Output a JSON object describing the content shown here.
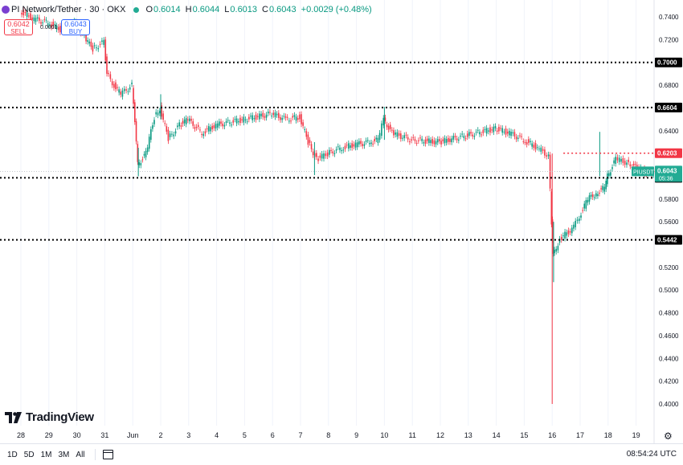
{
  "header": {
    "symbol_text": "PI Network/Tether · 30 · OKX",
    "open_label": "O",
    "open": "0.6014",
    "high_label": "H",
    "high": "0.6044",
    "low_label": "L",
    "low": "0.6013",
    "close_label": "C",
    "close": "0.6043",
    "change": "+0.0029 (+0.48%)"
  },
  "trade": {
    "sell_price": "0.6042",
    "sell_label": "SELL",
    "buy_price": "0.6043",
    "buy_label": "BUY",
    "spread": "0.0001"
  },
  "brand": "TradingView",
  "bottom_bar": {
    "timeframes": [
      "1D",
      "5D",
      "1M",
      "3M",
      "All"
    ],
    "clock": "08:54:24 UTC"
  },
  "colors": {
    "up": "#089981",
    "down": "#f23645",
    "hline": "#000000",
    "resistance_dotted": "#f23645",
    "price_badge": "#22ab94"
  },
  "chart_data": {
    "type": "candlestick",
    "symbol": "PIUSDT",
    "interval": "30",
    "ylim": [
      0.4,
      0.74
    ],
    "y_ticks": [
      0.74,
      0.72,
      0.7,
      0.68,
      0.6604,
      0.64,
      0.6203,
      0.6043,
      0.5987,
      0.58,
      0.56,
      0.5442,
      0.52,
      0.5,
      0.48,
      0.46,
      0.44,
      0.42,
      0.4
    ],
    "y_tick_labels": [
      "0.7400",
      "0.7200",
      "0.7000",
      "0.6800",
      "0.6604",
      "0.6400",
      "0.6203",
      "0.6043",
      "0.5987",
      "0.5800",
      "0.5600",
      "0.5442",
      "0.5200",
      "0.5000",
      "0.4800",
      "0.4600",
      "0.4400",
      "0.4200",
      "0.4000"
    ],
    "x_ticks": [
      "28",
      "29",
      "30",
      "31",
      "Jun",
      "2",
      "3",
      "4",
      "5",
      "6",
      "7",
      "8",
      "9",
      "10",
      "11",
      "12",
      "13",
      "14",
      "15",
      "16",
      "17",
      "18",
      "19"
    ],
    "horizontal_lines": [
      {
        "value": 0.7,
        "label": "0.7000",
        "style": "dotted-black"
      },
      {
        "value": 0.6604,
        "label": "0.6604",
        "style": "dotted-black"
      },
      {
        "value": 0.5987,
        "label": "0.5987",
        "style": "dotted-black"
      },
      {
        "value": 0.5442,
        "label": "0.5442",
        "style": "dotted-black"
      },
      {
        "value": 0.6203,
        "label": "0.6203",
        "style": "dotted-red",
        "from_x": "13.4"
      }
    ],
    "last_price": {
      "label": "PIUSDT",
      "value": "0.6043",
      "countdown": "05:36"
    },
    "price_path": [
      {
        "x": 27.0,
        "y": 0.745
      },
      {
        "x": 27.5,
        "y": 0.738
      },
      {
        "x": 28.0,
        "y": 0.735
      },
      {
        "x": 28.5,
        "y": 0.728
      },
      {
        "x": 29.0,
        "y": 0.735
      },
      {
        "x": 29.3,
        "y": 0.722
      },
      {
        "x": 29.6,
        "y": 0.712
      },
      {
        "x": 30.0,
        "y": 0.718
      },
      {
        "x": 30.1,
        "y": 0.69
      },
      {
        "x": 30.3,
        "y": 0.682
      },
      {
        "x": 30.6,
        "y": 0.672
      },
      {
        "x": 31.0,
        "y": 0.68
      },
      {
        "x": 31.1,
        "y": 0.65
      },
      {
        "x": 31.2,
        "y": 0.61
      },
      {
        "x": 31.5,
        "y": 0.62
      },
      {
        "x": 31.8,
        "y": 0.652
      },
      {
        "x": 32.0,
        "y": 0.66
      },
      {
        "x": 32.3,
        "y": 0.633
      },
      {
        "x": 32.7,
        "y": 0.645
      },
      {
        "x": 33.0,
        "y": 0.65
      },
      {
        "x": 33.5,
        "y": 0.638
      },
      {
        "x": 34.0,
        "y": 0.645
      },
      {
        "x": 35.0,
        "y": 0.65
      },
      {
        "x": 36.0,
        "y": 0.655
      },
      {
        "x": 36.5,
        "y": 0.65
      },
      {
        "x": 37.0,
        "y": 0.652
      },
      {
        "x": 37.3,
        "y": 0.63
      },
      {
        "x": 37.6,
        "y": 0.615
      },
      {
        "x": 38.0,
        "y": 0.62
      },
      {
        "x": 38.5,
        "y": 0.625
      },
      {
        "x": 39.0,
        "y": 0.628
      },
      {
        "x": 39.5,
        "y": 0.63
      },
      {
        "x": 39.8,
        "y": 0.632
      },
      {
        "x": 40.0,
        "y": 0.65
      },
      {
        "x": 40.3,
        "y": 0.638
      },
      {
        "x": 41.0,
        "y": 0.632
      },
      {
        "x": 42.0,
        "y": 0.63
      },
      {
        "x": 43.0,
        "y": 0.636
      },
      {
        "x": 44.0,
        "y": 0.642
      },
      {
        "x": 44.5,
        "y": 0.638
      },
      {
        "x": 45.0,
        "y": 0.632
      },
      {
        "x": 45.5,
        "y": 0.625
      },
      {
        "x": 45.9,
        "y": 0.618
      },
      {
        "x": 46.0,
        "y": 0.56
      },
      {
        "x": 46.05,
        "y": 0.53
      },
      {
        "x": 46.3,
        "y": 0.545
      },
      {
        "x": 46.8,
        "y": 0.555
      },
      {
        "x": 47.0,
        "y": 0.565
      },
      {
        "x": 47.3,
        "y": 0.58
      },
      {
        "x": 47.6,
        "y": 0.585
      },
      {
        "x": 47.9,
        "y": 0.59
      },
      {
        "x": 48.0,
        "y": 0.6
      },
      {
        "x": 48.3,
        "y": 0.615
      },
      {
        "x": 48.7,
        "y": 0.612
      },
      {
        "x": 49.0,
        "y": 0.608
      },
      {
        "x": 49.4,
        "y": 0.603
      },
      {
        "x": 49.9,
        "y": 0.602
      },
      {
        "x": 50.1,
        "y": 0.6043
      }
    ],
    "wicks": [
      {
        "x": 46.0,
        "high": 0.62,
        "low": 0.4
      },
      {
        "x": 46.05,
        "high": 0.56,
        "low": 0.507
      },
      {
        "x": 47.7,
        "high": 0.639,
        "low": 0.6
      },
      {
        "x": 40.0,
        "high": 0.661,
        "low": 0.632
      },
      {
        "x": 32.0,
        "high": 0.672,
        "low": 0.65
      },
      {
        "x": 31.2,
        "high": 0.625,
        "low": 0.6
      },
      {
        "x": 37.5,
        "high": 0.63,
        "low": 0.601
      }
    ]
  }
}
